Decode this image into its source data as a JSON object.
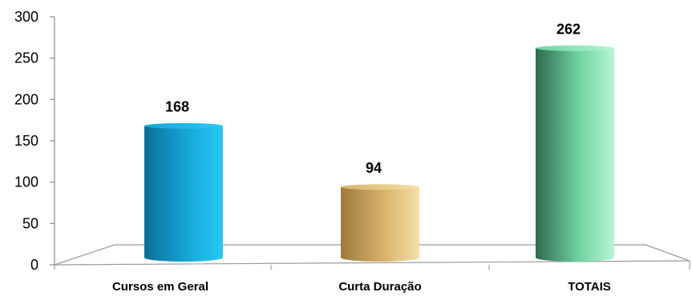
{
  "chart_data": {
    "type": "bar",
    "categories": [
      "Cursos em Geral",
      "Curta Duração",
      "TOTAIS"
    ],
    "values": [
      168,
      94,
      262
    ],
    "data_labels": [
      "168",
      "94",
      "262"
    ],
    "title": "",
    "xlabel": "",
    "ylabel": "",
    "ylim": [
      0,
      300
    ],
    "yticks": [
      "0",
      "50",
      "100",
      "150",
      "200",
      "250",
      "300"
    ],
    "grid": false,
    "legend": "none",
    "style": "3d-cylinder",
    "colors": {
      "bar_1": {
        "dark": "#0b6f98",
        "mid": "#16a6d8",
        "light": "#28c8f4"
      },
      "bar_2": {
        "dark": "#9c7a3c",
        "mid": "#d8b26a",
        "light": "#f6e0a8"
      },
      "bar_3": {
        "dark": "#2f6a4e",
        "mid": "#6fd3a0",
        "light": "#b6f7d4"
      },
      "axis": "#8c8c8c",
      "floor": "#9a9a9a"
    }
  }
}
